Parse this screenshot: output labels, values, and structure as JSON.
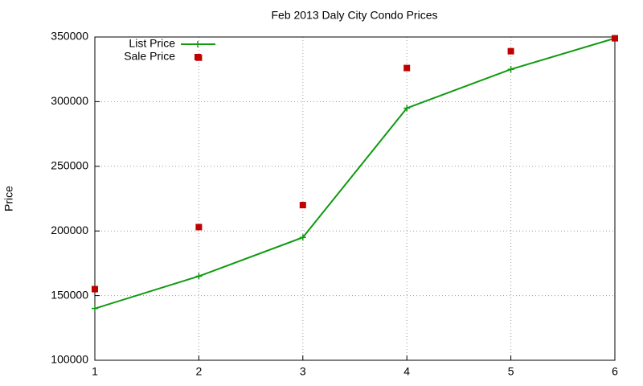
{
  "chart_data": {
    "type": "line",
    "title": "Feb 2013 Daly City Condo Prices",
    "y_label": "Price",
    "xlim": [
      1,
      6
    ],
    "xticks": [
      1,
      2,
      3,
      4,
      5,
      6
    ],
    "ylim": [
      100000,
      350000
    ],
    "yticks": [
      100000,
      150000,
      200000,
      250000,
      300000,
      350000
    ],
    "grid": true,
    "legend": "top-left",
    "series": [
      {
        "name": "List Price",
        "color": "#109a10",
        "style": "linespoints",
        "x": [
          1,
          2,
          3,
          4,
          5,
          6
        ],
        "values": [
          140000,
          165000,
          195000,
          295000,
          325000,
          349000
        ]
      },
      {
        "name": "Sale Price",
        "color": "#c00000",
        "style": "points",
        "x": [
          1,
          2,
          2,
          3,
          4,
          5,
          6
        ],
        "values": [
          155000,
          203000,
          334000,
          220000,
          326000,
          339000,
          349000
        ]
      }
    ]
  }
}
